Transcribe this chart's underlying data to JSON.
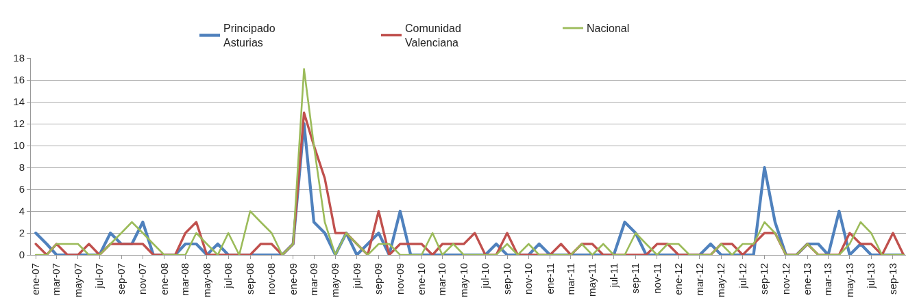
{
  "chart_data": {
    "type": "line",
    "x": [
      "2007-01",
      "2007-02",
      "2007-03",
      "2007-04",
      "2007-05",
      "2007-06",
      "2007-07",
      "2007-08",
      "2007-09",
      "2007-10",
      "2007-11",
      "2007-12",
      "2008-01",
      "2008-02",
      "2008-03",
      "2008-04",
      "2008-05",
      "2008-06",
      "2008-07",
      "2008-08",
      "2008-09",
      "2008-10",
      "2008-11",
      "2008-12",
      "2009-01",
      "2009-02",
      "2009-03",
      "2009-04",
      "2009-05",
      "2009-06",
      "2009-07",
      "2009-08",
      "2009-09",
      "2009-10",
      "2009-11",
      "2009-12",
      "2010-01",
      "2010-02",
      "2010-03",
      "2010-04",
      "2010-05",
      "2010-06",
      "2010-07",
      "2010-08",
      "2010-09",
      "2010-10",
      "2010-11",
      "2010-12",
      "2011-01",
      "2011-02",
      "2011-03",
      "2011-04",
      "2011-05",
      "2011-06",
      "2011-07",
      "2011-08",
      "2011-09",
      "2011-10",
      "2011-11",
      "2011-12",
      "2012-01",
      "2012-02",
      "2012-03",
      "2012-04",
      "2012-05",
      "2012-06",
      "2012-07",
      "2012-08",
      "2012-09",
      "2012-10",
      "2012-11",
      "2012-12",
      "2013-01",
      "2013-02",
      "2013-03",
      "2013-04",
      "2013-05",
      "2013-06",
      "2013-07",
      "2013-08",
      "2013-09",
      "2013-10"
    ],
    "series": [
      {
        "name": "Principado\nAsturias",
        "color": "#4f81bd",
        "values": [
          2,
          1,
          0,
          0,
          0,
          0,
          0,
          2,
          1,
          1,
          3,
          0,
          0,
          0,
          1,
          1,
          0,
          1,
          0,
          0,
          0,
          0,
          0,
          0,
          1,
          12,
          3,
          2,
          0,
          2,
          0,
          1,
          2,
          0,
          4,
          0,
          0,
          0,
          0,
          0,
          0,
          0,
          0,
          1,
          0,
          0,
          0,
          1,
          0,
          0,
          0,
          0,
          0,
          0,
          0,
          3,
          2,
          0,
          0,
          0,
          0,
          0,
          0,
          1,
          0,
          0,
          0,
          0,
          8,
          3,
          0,
          0,
          1,
          1,
          0,
          4,
          0,
          1,
          0,
          0,
          0,
          0
        ]
      },
      {
        "name": "Comunidad\nValenciana",
        "color": "#c0504d",
        "values": [
          1,
          0,
          1,
          0,
          0,
          1,
          0,
          1,
          1,
          1,
          1,
          0,
          0,
          0,
          2,
          3,
          0,
          0,
          0,
          0,
          0,
          1,
          1,
          0,
          1,
          13,
          10,
          7,
          2,
          2,
          1,
          0,
          4,
          0,
          1,
          1,
          1,
          0,
          1,
          1,
          1,
          2,
          0,
          0,
          2,
          0,
          0,
          0,
          0,
          1,
          0,
          1,
          1,
          0,
          0,
          0,
          0,
          0,
          1,
          1,
          0,
          0,
          0,
          0,
          1,
          1,
          0,
          1,
          2,
          2,
          0,
          0,
          1,
          0,
          0,
          0,
          2,
          1,
          1,
          0,
          2,
          0
        ]
      },
      {
        "name": "Nacional",
        "color": "#9bbb59",
        "values": [
          0,
          0,
          1,
          1,
          1,
          0,
          0,
          1,
          2,
          3,
          2,
          1,
          0,
          0,
          0,
          2,
          1,
          0,
          2,
          0,
          4,
          3,
          2,
          0,
          1,
          17,
          10,
          3,
          0,
          2,
          1,
          0,
          1,
          1,
          0,
          0,
          0,
          2,
          0,
          1,
          0,
          0,
          0,
          0,
          1,
          0,
          1,
          0,
          0,
          0,
          0,
          1,
          0,
          1,
          0,
          0,
          2,
          1,
          0,
          1,
          1,
          0,
          0,
          0,
          1,
          0,
          1,
          1,
          3,
          2,
          0,
          0,
          1,
          0,
          0,
          0,
          1,
          3,
          2,
          0,
          0,
          0
        ]
      }
    ],
    "xlim": [
      "2006-12-18",
      "2013-10-08"
    ],
    "xticks": [
      {
        "value": "2007-01",
        "label": "ene-07"
      },
      {
        "value": "2007-03",
        "label": "mar-07"
      },
      {
        "value": "2007-05",
        "label": "may-07"
      },
      {
        "value": "2007-07",
        "label": "jul-07"
      },
      {
        "value": "2007-09",
        "label": "sep-07"
      },
      {
        "value": "2007-11",
        "label": "nov-07"
      },
      {
        "value": "2008-01",
        "label": "ene-08"
      },
      {
        "value": "2008-03",
        "label": "mar-08"
      },
      {
        "value": "2008-05",
        "label": "may-08"
      },
      {
        "value": "2008-07",
        "label": "jul-08"
      },
      {
        "value": "2008-09",
        "label": "sep-08"
      },
      {
        "value": "2008-11",
        "label": "nov-08"
      },
      {
        "value": "2009-01",
        "label": "ene-09"
      },
      {
        "value": "2009-03",
        "label": "mar-09"
      },
      {
        "value": "2009-05",
        "label": "may-09"
      },
      {
        "value": "2009-07",
        "label": "jul-09"
      },
      {
        "value": "2009-09",
        "label": "sep-09"
      },
      {
        "value": "2009-11",
        "label": "nov-09"
      },
      {
        "value": "2010-01",
        "label": "ene-10"
      },
      {
        "value": "2010-03",
        "label": "mar-10"
      },
      {
        "value": "2010-05",
        "label": "may-10"
      },
      {
        "value": "2010-07",
        "label": "jul-10"
      },
      {
        "value": "2010-09",
        "label": "sep-10"
      },
      {
        "value": "2010-11",
        "label": "nov-10"
      },
      {
        "value": "2011-01",
        "label": "ene-11"
      },
      {
        "value": "2011-03",
        "label": "mar-11"
      },
      {
        "value": "2011-05",
        "label": "may-11"
      },
      {
        "value": "2011-07",
        "label": "jul-11"
      },
      {
        "value": "2011-09",
        "label": "sep-11"
      },
      {
        "value": "2011-11",
        "label": "nov-11"
      },
      {
        "value": "2012-01",
        "label": "ene-12"
      },
      {
        "value": "2012-03",
        "label": "mar-12"
      },
      {
        "value": "2012-05",
        "label": "may-12"
      },
      {
        "value": "2012-07",
        "label": "jul-12"
      },
      {
        "value": "2012-09",
        "label": "sep-12"
      },
      {
        "value": "2012-11",
        "label": "nov-12"
      },
      {
        "value": "2013-01",
        "label": "ene-13"
      },
      {
        "value": "2013-03",
        "label": "mar-13"
      },
      {
        "value": "2013-05",
        "label": "may-13"
      },
      {
        "value": "2013-07",
        "label": "jul-13"
      },
      {
        "value": "2013-09",
        "label": "sep-13"
      }
    ],
    "ylim": [
      0,
      18
    ],
    "yticks": [
      0,
      2,
      4,
      6,
      8,
      10,
      12,
      14,
      16,
      18
    ],
    "grid": "y",
    "legend": "top",
    "marker": "none",
    "line_style": "solid"
  }
}
